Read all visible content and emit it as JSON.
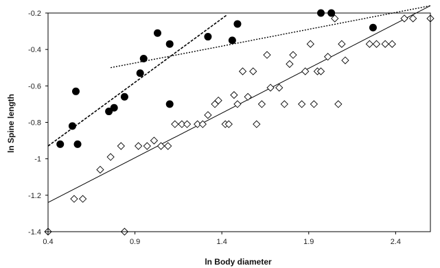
{
  "chart_data": {
    "type": "scatter",
    "xlabel": "ln Body diameter",
    "ylabel": "ln Spine length",
    "xlim": [
      0.4,
      2.6
    ],
    "ylim": [
      -1.4,
      -0.2
    ],
    "xticks": [
      "0.4",
      "0.9",
      "1.4",
      "1.9",
      "2.4"
    ],
    "xtick_values": [
      0.4,
      0.9,
      1.4,
      1.9,
      2.4
    ],
    "yticks": [
      "-0.2",
      "-0.4",
      "-0.6",
      "-0.8",
      "-1",
      "-1.2",
      "-1.4"
    ],
    "ytick_values": [
      -0.2,
      -0.4,
      -0.6,
      -0.8,
      -1.0,
      -1.2,
      -1.4
    ],
    "grid": false,
    "series": [
      {
        "marker": "filled-circle",
        "points": [
          [
            0.47,
            -0.92
          ],
          [
            0.54,
            -0.82
          ],
          [
            0.56,
            -0.63
          ],
          [
            0.57,
            -0.92
          ],
          [
            0.75,
            -0.74
          ],
          [
            0.78,
            -0.72
          ],
          [
            0.84,
            -0.66
          ],
          [
            0.93,
            -0.53
          ],
          [
            0.95,
            -0.45
          ],
          [
            1.03,
            -0.31
          ],
          [
            1.1,
            -0.37
          ],
          [
            1.1,
            -0.7
          ],
          [
            1.32,
            -0.33
          ],
          [
            1.46,
            -0.35
          ],
          [
            1.49,
            -0.26
          ],
          [
            1.97,
            -0.2
          ],
          [
            2.03,
            -0.2
          ],
          [
            2.27,
            -0.28
          ]
        ]
      },
      {
        "marker": "open-diamond",
        "points": [
          [
            0.4,
            -1.4
          ],
          [
            0.55,
            -1.22
          ],
          [
            0.6,
            -1.22
          ],
          [
            0.7,
            -1.06
          ],
          [
            0.76,
            -0.99
          ],
          [
            0.82,
            -0.93
          ],
          [
            0.84,
            -1.4
          ],
          [
            0.92,
            -0.93
          ],
          [
            0.97,
            -0.93
          ],
          [
            1.01,
            -0.9
          ],
          [
            1.05,
            -0.93
          ],
          [
            1.09,
            -0.93
          ],
          [
            1.13,
            -0.81
          ],
          [
            1.17,
            -0.81
          ],
          [
            1.2,
            -0.81
          ],
          [
            1.26,
            -0.81
          ],
          [
            1.29,
            -0.81
          ],
          [
            1.32,
            -0.76
          ],
          [
            1.36,
            -0.7
          ],
          [
            1.38,
            -0.68
          ],
          [
            1.42,
            -0.81
          ],
          [
            1.44,
            -0.81
          ],
          [
            1.47,
            -0.65
          ],
          [
            1.49,
            -0.7
          ],
          [
            1.52,
            -0.52
          ],
          [
            1.55,
            -0.66
          ],
          [
            1.58,
            -0.52
          ],
          [
            1.6,
            -0.81
          ],
          [
            1.63,
            -0.7
          ],
          [
            1.66,
            -0.43
          ],
          [
            1.68,
            -0.61
          ],
          [
            1.73,
            -0.61
          ],
          [
            1.76,
            -0.7
          ],
          [
            1.79,
            -0.48
          ],
          [
            1.81,
            -0.43
          ],
          [
            1.86,
            -0.7
          ],
          [
            1.88,
            -0.52
          ],
          [
            1.91,
            -0.37
          ],
          [
            1.93,
            -0.7
          ],
          [
            1.95,
            -0.52
          ],
          [
            1.97,
            -0.52
          ],
          [
            2.01,
            -0.44
          ],
          [
            2.05,
            -0.23
          ],
          [
            2.07,
            -0.7
          ],
          [
            2.09,
            -0.37
          ],
          [
            2.11,
            -0.46
          ],
          [
            2.25,
            -0.37
          ],
          [
            2.29,
            -0.37
          ],
          [
            2.34,
            -0.37
          ],
          [
            2.38,
            -0.37
          ],
          [
            2.45,
            -0.23
          ],
          [
            2.5,
            -0.23
          ],
          [
            2.6,
            -0.23
          ]
        ]
      }
    ],
    "lines": [
      {
        "style": "solid",
        "from": [
          0.4,
          -1.24
        ],
        "to": [
          2.6,
          -0.16
        ]
      },
      {
        "style": "dashed",
        "from": [
          0.4,
          -0.93
        ],
        "to": [
          1.43,
          -0.21
        ]
      },
      {
        "style": "dotted",
        "from": [
          0.76,
          -0.5
        ],
        "to": [
          2.6,
          -0.16
        ]
      }
    ]
  }
}
